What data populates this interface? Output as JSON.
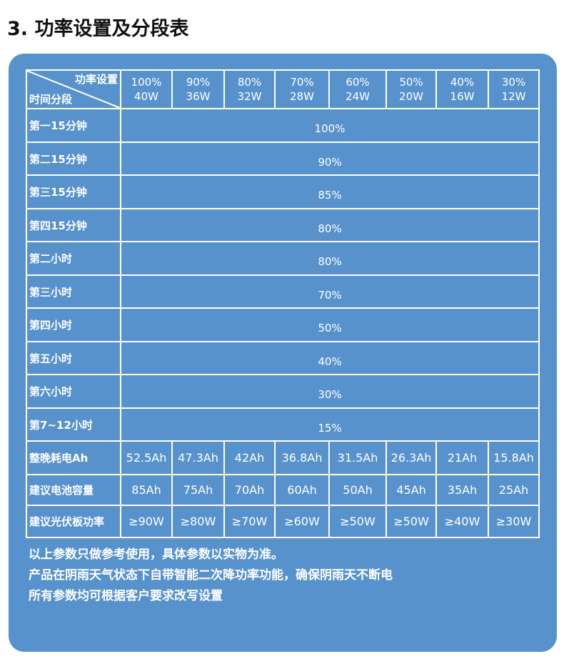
{
  "title": "3. 功率设置及分段表",
  "header": {
    "power_label": "功率设置",
    "time_label": "时间分段",
    "columns": [
      {
        "pct": "100%",
        "w": "40W"
      },
      {
        "pct": "90%",
        "w": "36W"
      },
      {
        "pct": "80%",
        "w": "32W"
      },
      {
        "pct": "70%",
        "w": "28W"
      },
      {
        "pct": "60%",
        "w": "24W"
      },
      {
        "pct": "50%",
        "w": "20W"
      },
      {
        "pct": "40%",
        "w": "16W"
      },
      {
        "pct": "30%",
        "w": "12W"
      }
    ]
  },
  "segments": [
    {
      "label": "第一15分钟",
      "value": "100%"
    },
    {
      "label": "第二15分钟",
      "value": "90%"
    },
    {
      "label": "第三15分钟",
      "value": "85%"
    },
    {
      "label": "第四15分钟",
      "value": "80%"
    },
    {
      "label": "第二小时",
      "value": "80%"
    },
    {
      "label": "第三小时",
      "value": "70%"
    },
    {
      "label": "第四小时",
      "value": "50%"
    },
    {
      "label": "第五小时",
      "value": "40%"
    },
    {
      "label": "第六小时",
      "value": "30%"
    },
    {
      "label": "第7~12小时",
      "value": "15%"
    }
  ],
  "rows": [
    {
      "label": "整晚耗电Ah",
      "values": [
        "52.5Ah",
        "47.3Ah",
        "42Ah",
        "36.8Ah",
        "31.5Ah",
        "26.3Ah",
        "21Ah",
        "15.8Ah"
      ]
    },
    {
      "label": "建议电池容量",
      "values": [
        "85Ah",
        "75Ah",
        "70Ah",
        "60Ah",
        "50Ah",
        "45Ah",
        "35Ah",
        "25Ah"
      ]
    },
    {
      "label": "建议光伏板功率",
      "values": [
        "≥90W",
        "≥80W",
        "≥70W",
        "≥60W",
        "≥50W",
        "≥50W",
        "≥40W",
        "≥30W"
      ]
    }
  ],
  "notes": [
    "以上参数只做参考使用，具体参数以实物为准。",
    "产品在阴雨天气状态下自带智能二次降功率功能，确保阴雨天不断电",
    "所有参数均可根据客户要求改写设置"
  ]
}
